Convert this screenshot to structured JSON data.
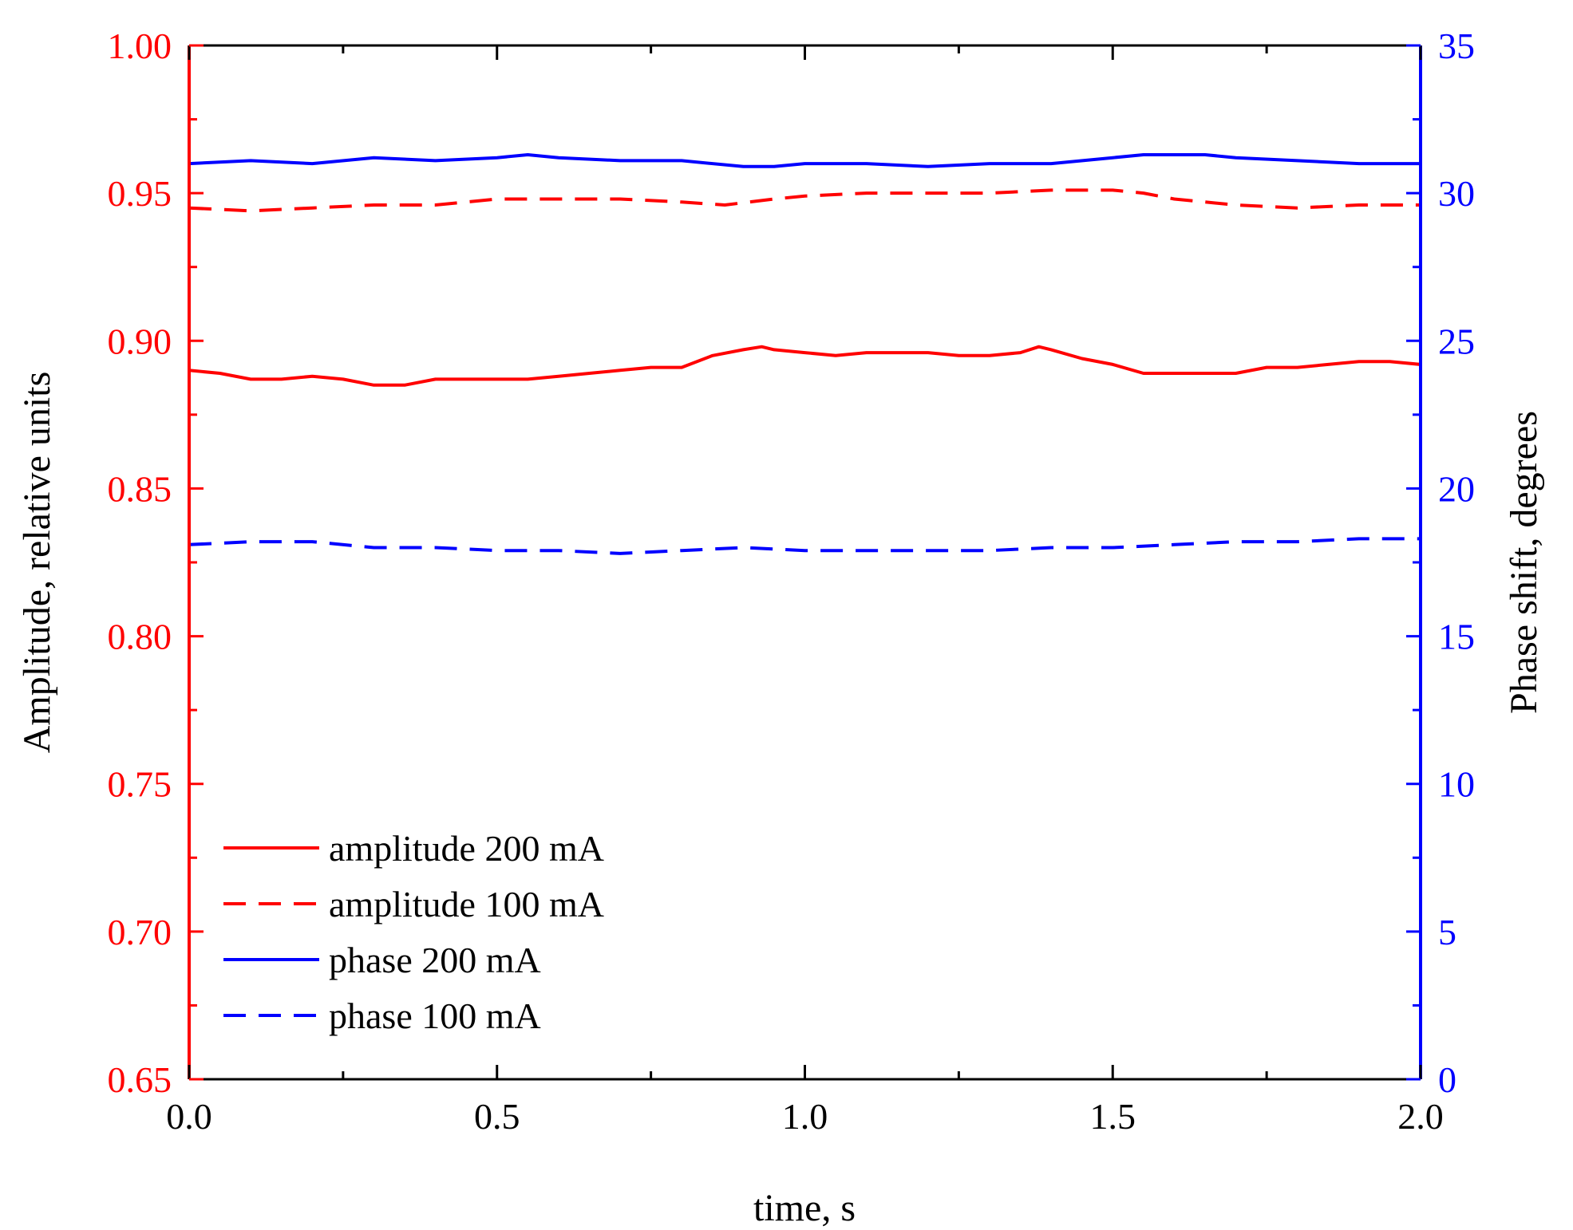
{
  "chart_data": {
    "type": "line",
    "x_axis": {
      "label": "time, s",
      "range": [
        0.0,
        2.0
      ],
      "ticks": [
        "0.0",
        "0.5",
        "1.0",
        "1.5",
        "2.0"
      ],
      "minor_step": 0.25
    },
    "y_left": {
      "label": "Amplitude, relative units",
      "range": [
        0.65,
        1.0
      ],
      "ticks": [
        "0.65",
        "0.70",
        "0.75",
        "0.80",
        "0.85",
        "0.90",
        "0.95",
        "1.00"
      ],
      "color": "#ff0000"
    },
    "y_right": {
      "label": "Phase shift, degrees",
      "range": [
        0,
        35
      ],
      "ticks": [
        "0",
        "5",
        "10",
        "15",
        "20",
        "25",
        "30",
        "35"
      ],
      "color": "#0000ff"
    },
    "legend": {
      "position": "bottom-left",
      "entries": [
        "amplitude 200 mA",
        "amplitude 100 mA",
        "phase 200 mA",
        "phase 100 mA"
      ]
    },
    "series": [
      {
        "name": "amplitude 200 mA",
        "axis": "left",
        "color": "#ff0000",
        "dash": "solid",
        "points": [
          [
            0.0,
            0.89
          ],
          [
            0.05,
            0.889
          ],
          [
            0.1,
            0.887
          ],
          [
            0.15,
            0.887
          ],
          [
            0.2,
            0.888
          ],
          [
            0.25,
            0.887
          ],
          [
            0.3,
            0.885
          ],
          [
            0.35,
            0.885
          ],
          [
            0.4,
            0.887
          ],
          [
            0.45,
            0.887
          ],
          [
            0.5,
            0.887
          ],
          [
            0.55,
            0.887
          ],
          [
            0.6,
            0.888
          ],
          [
            0.65,
            0.889
          ],
          [
            0.7,
            0.89
          ],
          [
            0.75,
            0.891
          ],
          [
            0.8,
            0.891
          ],
          [
            0.85,
            0.895
          ],
          [
            0.9,
            0.897
          ],
          [
            0.93,
            0.898
          ],
          [
            0.95,
            0.897
          ],
          [
            1.0,
            0.896
          ],
          [
            1.05,
            0.895
          ],
          [
            1.1,
            0.896
          ],
          [
            1.15,
            0.896
          ],
          [
            1.2,
            0.896
          ],
          [
            1.25,
            0.895
          ],
          [
            1.3,
            0.895
          ],
          [
            1.35,
            0.896
          ],
          [
            1.38,
            0.898
          ],
          [
            1.4,
            0.897
          ],
          [
            1.45,
            0.894
          ],
          [
            1.5,
            0.892
          ],
          [
            1.55,
            0.889
          ],
          [
            1.6,
            0.889
          ],
          [
            1.65,
            0.889
          ],
          [
            1.7,
            0.889
          ],
          [
            1.75,
            0.891
          ],
          [
            1.8,
            0.891
          ],
          [
            1.85,
            0.892
          ],
          [
            1.9,
            0.893
          ],
          [
            1.95,
            0.893
          ],
          [
            2.0,
            0.892
          ]
        ]
      },
      {
        "name": "amplitude 100 mA",
        "axis": "left",
        "color": "#ff0000",
        "dash": "dashed",
        "points": [
          [
            0.0,
            0.945
          ],
          [
            0.1,
            0.944
          ],
          [
            0.2,
            0.945
          ],
          [
            0.3,
            0.946
          ],
          [
            0.4,
            0.946
          ],
          [
            0.5,
            0.948
          ],
          [
            0.6,
            0.948
          ],
          [
            0.7,
            0.948
          ],
          [
            0.8,
            0.947
          ],
          [
            0.87,
            0.946
          ],
          [
            0.95,
            0.948
          ],
          [
            1.0,
            0.949
          ],
          [
            1.1,
            0.95
          ],
          [
            1.2,
            0.95
          ],
          [
            1.3,
            0.95
          ],
          [
            1.4,
            0.951
          ],
          [
            1.5,
            0.951
          ],
          [
            1.55,
            0.95
          ],
          [
            1.6,
            0.948
          ],
          [
            1.7,
            0.946
          ],
          [
            1.8,
            0.945
          ],
          [
            1.9,
            0.946
          ],
          [
            2.0,
            0.946
          ]
        ]
      },
      {
        "name": "phase 200 mA",
        "axis": "right",
        "color": "#0000ff",
        "dash": "solid",
        "points": [
          [
            0.0,
            31.0
          ],
          [
            0.1,
            31.1
          ],
          [
            0.2,
            31.0
          ],
          [
            0.3,
            31.2
          ],
          [
            0.4,
            31.1
          ],
          [
            0.5,
            31.2
          ],
          [
            0.55,
            31.3
          ],
          [
            0.6,
            31.2
          ],
          [
            0.7,
            31.1
          ],
          [
            0.8,
            31.1
          ],
          [
            0.9,
            30.9
          ],
          [
            0.95,
            30.9
          ],
          [
            1.0,
            31.0
          ],
          [
            1.1,
            31.0
          ],
          [
            1.2,
            30.9
          ],
          [
            1.3,
            31.0
          ],
          [
            1.4,
            31.0
          ],
          [
            1.5,
            31.2
          ],
          [
            1.55,
            31.3
          ],
          [
            1.6,
            31.3
          ],
          [
            1.65,
            31.3
          ],
          [
            1.7,
            31.2
          ],
          [
            1.8,
            31.1
          ],
          [
            1.9,
            31.0
          ],
          [
            2.0,
            31.0
          ]
        ]
      },
      {
        "name": "phase 100 mA",
        "axis": "right",
        "color": "#0000ff",
        "dash": "dashed",
        "points": [
          [
            0.0,
            18.1
          ],
          [
            0.1,
            18.2
          ],
          [
            0.2,
            18.2
          ],
          [
            0.3,
            18.0
          ],
          [
            0.4,
            18.0
          ],
          [
            0.5,
            17.9
          ],
          [
            0.6,
            17.9
          ],
          [
            0.7,
            17.8
          ],
          [
            0.8,
            17.9
          ],
          [
            0.9,
            18.0
          ],
          [
            1.0,
            17.9
          ],
          [
            1.1,
            17.9
          ],
          [
            1.2,
            17.9
          ],
          [
            1.3,
            17.9
          ],
          [
            1.4,
            18.0
          ],
          [
            1.5,
            18.0
          ],
          [
            1.6,
            18.1
          ],
          [
            1.7,
            18.2
          ],
          [
            1.8,
            18.2
          ],
          [
            1.9,
            18.3
          ],
          [
            2.0,
            18.3
          ]
        ]
      }
    ]
  }
}
